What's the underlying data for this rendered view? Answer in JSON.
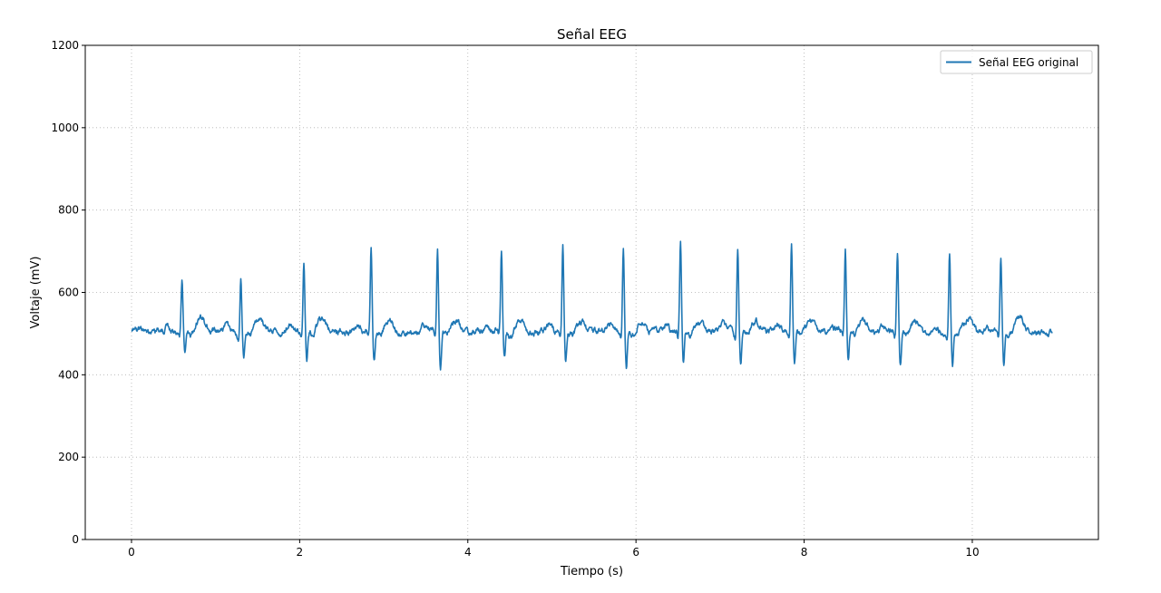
{
  "chart_data": {
    "type": "line",
    "title": "Señal EEG",
    "xlabel": "Tiempo (s)",
    "ylabel": "Voltaje (mV)",
    "xlim": [
      -0.55,
      11.5
    ],
    "ylim": [
      0,
      1200
    ],
    "x_ticks": [
      0,
      2,
      4,
      6,
      8,
      10
    ],
    "y_ticks": [
      0,
      200,
      400,
      600,
      800,
      1000,
      1200
    ],
    "x_tick_labels": [
      "0",
      "2",
      "4",
      "6",
      "8",
      "10"
    ],
    "y_tick_labels": [
      "0",
      "200",
      "400",
      "600",
      "800",
      "1000",
      "1200"
    ],
    "grid": true,
    "legend_position": "top-right",
    "colors": {
      "series": "#1f77b4",
      "grid": "#b0b0b0",
      "axes": "#000000"
    },
    "series": [
      {
        "name": "Señal EEG original",
        "x_start": 0,
        "x_end": 10.95,
        "baseline_mv": 505,
        "beats": [
          {
            "t": 0.6,
            "peak": 630,
            "trough": 455
          },
          {
            "t": 1.3,
            "peak": 636,
            "trough": 435
          },
          {
            "t": 2.05,
            "peak": 684,
            "trough": 437
          },
          {
            "t": 2.85,
            "peak": 710,
            "trough": 430
          },
          {
            "t": 3.64,
            "peak": 704,
            "trough": 410
          },
          {
            "t": 4.4,
            "peak": 700,
            "trough": 435
          },
          {
            "t": 5.13,
            "peak": 721,
            "trough": 430
          },
          {
            "t": 5.85,
            "peak": 718,
            "trough": 420
          },
          {
            "t": 6.53,
            "peak": 720,
            "trough": 427
          },
          {
            "t": 7.21,
            "peak": 711,
            "trough": 427
          },
          {
            "t": 7.85,
            "peak": 705,
            "trough": 423
          },
          {
            "t": 8.49,
            "peak": 700,
            "trough": 428
          },
          {
            "t": 9.11,
            "peak": 698,
            "trough": 420
          },
          {
            "t": 9.73,
            "peak": 696,
            "trough": 422
          },
          {
            "t": 10.34,
            "peak": 684,
            "trough": 423
          }
        ]
      }
    ]
  }
}
